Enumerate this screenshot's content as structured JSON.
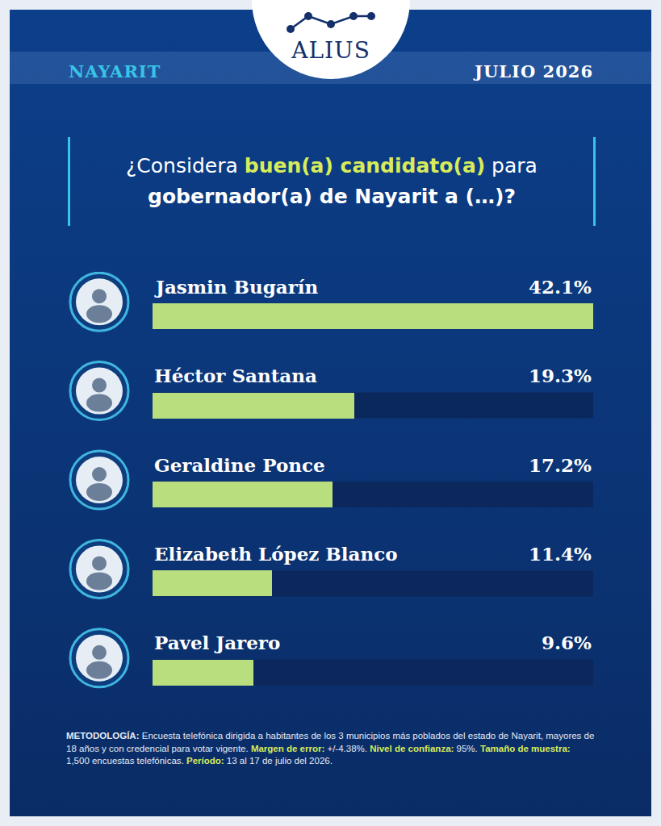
{
  "header": {
    "logo": "ALIUS",
    "region": "NAYARIT",
    "date": "JULIO 2026"
  },
  "chart_data": {
    "type": "bar",
    "orientation": "horizontal",
    "title": {
      "lines": [
        [
          {
            "text": "¿Considera "
          },
          {
            "text": "buen(a) candidato(a)",
            "highlight": true
          },
          {
            "text": " para"
          }
        ],
        [
          {
            "text": "gobernador(a) de Nayarit a (…)?"
          }
        ]
      ]
    },
    "categories": [
      "Jasmin Bugarín",
      "Héctor Santana",
      "Geraldine Ponce",
      "Elizabeth López Blanco",
      "Pavel Jarero"
    ],
    "values": [
      42.1,
      19.3,
      17.2,
      11.4,
      9.6
    ],
    "value_labels": [
      "42.1%",
      "19.3%",
      "17.2%",
      "11.4%",
      "9.6%"
    ],
    "data_labels": true,
    "color": "#b9de7e",
    "xlim": [
      0,
      42.1
    ],
    "tick_labels": false,
    "grid": false
  },
  "footer": {
    "methodology": [
      {
        "label": "METODOLOGÍA:",
        "text": "Encuesta telefónica dirigida a habitantes de los 3 municipios más poblados del estado de Nayarit, mayores de 18 años y con credencial para votar vigente."
      },
      {
        "label": "Margen de error:",
        "text": "+/-4.38%."
      },
      {
        "label": "Nivel de confianza:",
        "text": "95%."
      },
      {
        "label": "Tamaño de muestra:",
        "text": "1,500 encuestas telefónicas."
      },
      {
        "label": "Período:",
        "text": "13 al 17 de julio del 2026."
      }
    ]
  }
}
